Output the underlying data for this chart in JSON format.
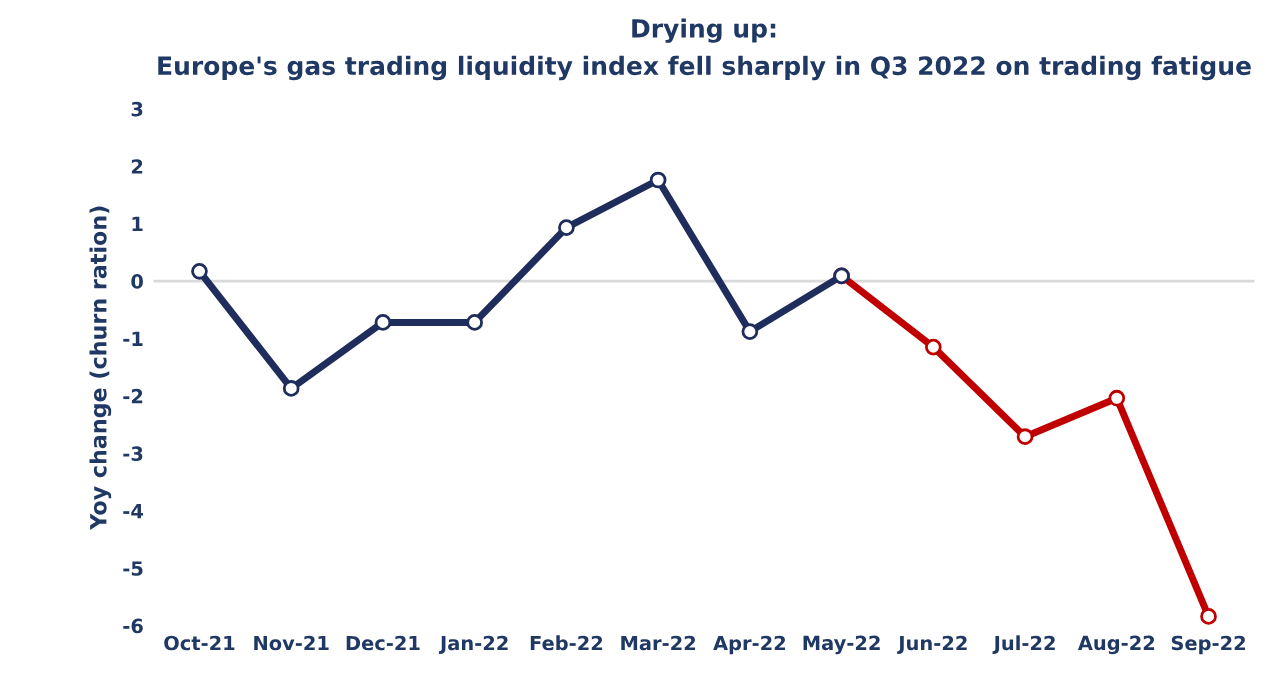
{
  "chart_data": {
    "type": "line",
    "title": "Drying up:",
    "subtitle": "Europe's gas trading liquidity index fell sharply in Q3 2022 on trading fatigue",
    "ylabel": "Yoy change (churn ration)",
    "categories": [
      "Oct-21",
      "Nov-21",
      "Dec-21",
      "Jan-22",
      "Feb-22",
      "Mar-22",
      "Apr-22",
      "May-22",
      "Jun-22",
      "Jul-22",
      "Aug-22",
      "Sep-22"
    ],
    "series": [
      {
        "color": "#1f2d5c",
        "values": [
          0.17,
          -1.87,
          -0.72,
          -0.72,
          0.93,
          1.76,
          -0.88,
          0.09,
          null,
          null,
          null,
          null
        ]
      },
      {
        "color": "#c00000",
        "values": [
          null,
          null,
          null,
          null,
          null,
          null,
          null,
          0.09,
          -1.15,
          -2.71,
          -2.04,
          -5.84
        ]
      }
    ],
    "ylim": [
      -6,
      3
    ],
    "yticks": [
      -6,
      -5,
      -4,
      -3,
      -2,
      -1,
      0,
      1,
      2,
      3
    ],
    "ref_lines": [
      {
        "axis": "y",
        "value": 0,
        "color": "#d9d9d9"
      }
    ],
    "marker": "circle",
    "line_style": "solid",
    "grid": false,
    "legend": false
  }
}
